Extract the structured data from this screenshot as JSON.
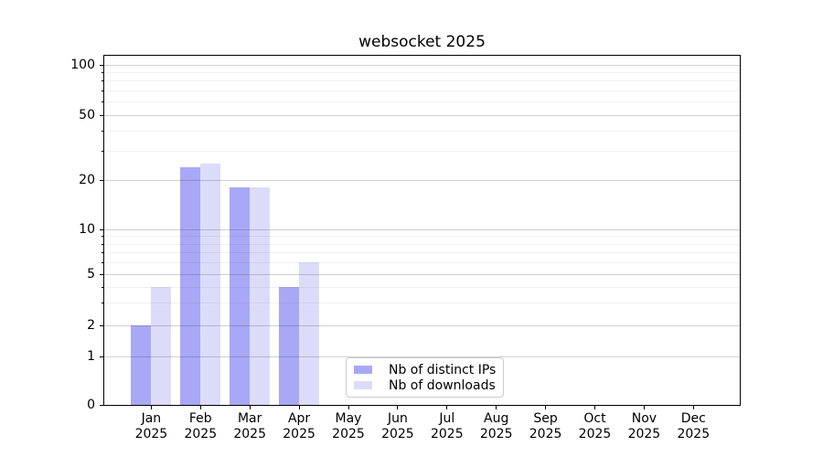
{
  "chart_data": {
    "type": "bar",
    "title": "websocket 2025",
    "categories": [
      "Jan 2025",
      "Feb 2025",
      "Mar 2025",
      "Apr 2025",
      "May 2025",
      "Jun 2025",
      "Jul 2025",
      "Aug 2025",
      "Sep 2025",
      "Oct 2025",
      "Nov 2025",
      "Dec 2025"
    ],
    "series": [
      {
        "name": "Nb of distinct IPs",
        "color": "#a8a8f6",
        "values": [
          2,
          24,
          18,
          4,
          0,
          0,
          0,
          0,
          0,
          0,
          0,
          0
        ]
      },
      {
        "name": "Nb of downloads",
        "color": "#dcdcfa",
        "values": [
          4,
          25,
          18,
          6,
          0,
          0,
          0,
          0,
          0,
          0,
          0,
          0
        ]
      }
    ],
    "y_axis": {
      "scale": "symlog",
      "ticks": [
        100,
        50,
        20,
        10,
        5,
        2,
        1,
        0
      ],
      "minor_ticks": [
        90,
        80,
        70,
        60,
        40,
        30,
        9,
        8,
        7,
        6,
        4,
        3
      ],
      "ylim": [
        0,
        115
      ]
    },
    "legend": {
      "entries": [
        "Nb of distinct IPs",
        "Nb of downloads"
      ],
      "position": "inside-bottom-center"
    },
    "grid": true,
    "grid_above_bars": true
  }
}
